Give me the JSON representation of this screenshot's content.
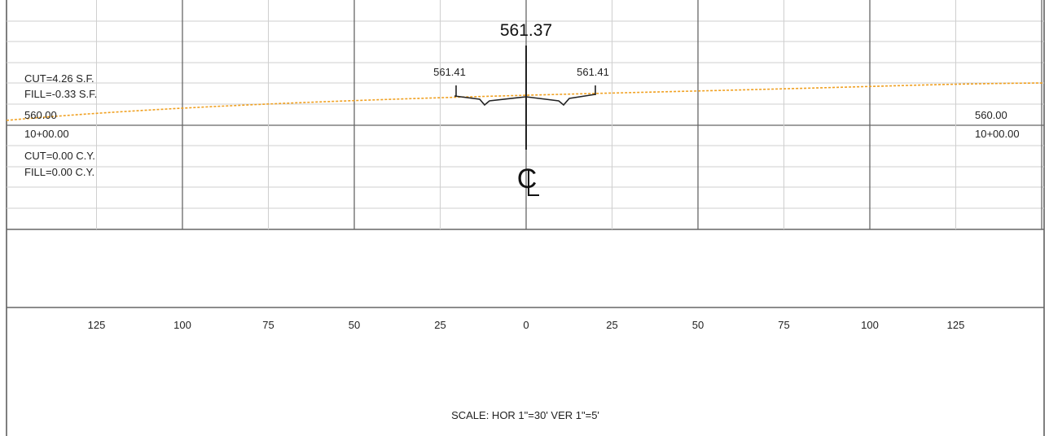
{
  "section": {
    "centerline_elevation": "561.37",
    "left_edge_elevation": "561.41",
    "right_edge_elevation": "561.41",
    "centerline_symbol": "CL",
    "cut_area": "CUT=4.26 S.F.",
    "fill_area": "FILL=-0.33 S.F.",
    "datum_left": "560.00",
    "station_left": "10+00.00",
    "datum_right": "560.00",
    "station_right": "10+00.00",
    "cut_volume": "CUT=0.00 C.Y.",
    "fill_volume": "FILL=0.00 C.Y.",
    "scale_note": "SCALE: HOR 1\"=30' VER 1\"=5'"
  },
  "offset_scale": {
    "ticks": [
      "125",
      "100",
      "75",
      "50",
      "25",
      "0",
      "25",
      "50",
      "75",
      "100",
      "125"
    ],
    "values": [
      -125,
      -100,
      -75,
      -50,
      -25,
      0,
      25,
      50,
      75,
      100,
      125
    ]
  },
  "colors": {
    "grid_major": "#666666",
    "grid_minor": "#cfcfcf",
    "existing_ground": "#f0a020",
    "proposed_section": "#222222"
  }
}
